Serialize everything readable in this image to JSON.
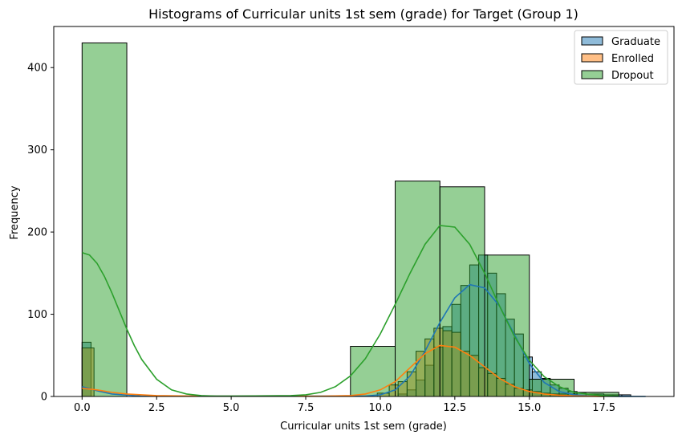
{
  "chart_data": {
    "type": "bar",
    "title": "Histograms of Curricular units 1st sem (grade) for Target (Group 1)",
    "xlabel": "Curricular units 1st sem (grade)",
    "ylabel": "Frequency",
    "xlim": [
      -0.95,
      19.85
    ],
    "ylim": [
      0,
      450
    ],
    "xticks": [
      0.0,
      2.5,
      5.0,
      7.5,
      10.0,
      12.5,
      15.0,
      17.5
    ],
    "xtick_labels": [
      "0.0",
      "2.5",
      "5.0",
      "7.5",
      "10.0",
      "12.5",
      "15.0",
      "17.5"
    ],
    "yticks": [
      0,
      100,
      200,
      300,
      400
    ],
    "ytick_labels": [
      "0",
      "100",
      "200",
      "300",
      "400"
    ],
    "legend_position": "top-right",
    "series": [
      {
        "name": "Graduate",
        "color": "#1f77b4",
        "bar_alpha": 0.5,
        "bins": [
          [
            0.0,
            0.3,
            66
          ],
          [
            10.6,
            10.9,
            3
          ],
          [
            10.9,
            11.2,
            8
          ],
          [
            11.2,
            11.5,
            20
          ],
          [
            11.5,
            11.8,
            38
          ],
          [
            11.8,
            12.1,
            60
          ],
          [
            12.1,
            12.4,
            85
          ],
          [
            12.4,
            12.7,
            112
          ],
          [
            12.7,
            13.0,
            135
          ],
          [
            13.0,
            13.3,
            160
          ],
          [
            13.3,
            13.6,
            172
          ],
          [
            13.6,
            13.9,
            150
          ],
          [
            13.9,
            14.2,
            125
          ],
          [
            14.2,
            14.5,
            94
          ],
          [
            14.5,
            14.8,
            76
          ],
          [
            14.8,
            15.1,
            48
          ],
          [
            15.1,
            15.4,
            30
          ],
          [
            15.4,
            15.7,
            22
          ],
          [
            15.7,
            16.0,
            14
          ],
          [
            16.0,
            16.3,
            10
          ],
          [
            16.3,
            16.6,
            6
          ],
          [
            16.6,
            16.9,
            4
          ],
          [
            16.9,
            17.2,
            3
          ],
          [
            17.2,
            17.5,
            3
          ],
          [
            17.5,
            17.8,
            2
          ],
          [
            17.8,
            18.1,
            2
          ],
          [
            18.1,
            18.4,
            2
          ]
        ],
        "kde": [
          [
            0.0,
            12
          ],
          [
            0.5,
            7
          ],
          [
            1.0,
            3
          ],
          [
            2.0,
            0.5
          ],
          [
            9.5,
            0.5
          ],
          [
            10.0,
            2
          ],
          [
            10.5,
            8
          ],
          [
            11.0,
            25
          ],
          [
            11.5,
            55
          ],
          [
            12.0,
            90
          ],
          [
            12.5,
            120
          ],
          [
            13.0,
            136
          ],
          [
            13.5,
            132
          ],
          [
            14.0,
            110
          ],
          [
            14.5,
            75
          ],
          [
            15.0,
            40
          ],
          [
            15.5,
            17
          ],
          [
            16.0,
            6
          ],
          [
            16.5,
            2
          ],
          [
            17.0,
            0.6
          ],
          [
            18.0,
            0.1
          ],
          [
            18.9,
            0
          ]
        ]
      },
      {
        "name": "Enrolled",
        "color": "#ff7f0e",
        "bar_alpha": 0.5,
        "bins": [
          [
            0.0,
            0.4,
            59
          ],
          [
            9.9,
            10.3,
            4
          ],
          [
            10.3,
            10.6,
            14
          ],
          [
            10.6,
            10.9,
            18
          ],
          [
            10.9,
            11.2,
            30
          ],
          [
            11.2,
            11.5,
            55
          ],
          [
            11.5,
            11.8,
            70
          ],
          [
            11.8,
            12.1,
            83
          ],
          [
            12.1,
            12.4,
            80
          ],
          [
            12.4,
            12.7,
            78
          ],
          [
            12.7,
            13.0,
            55
          ],
          [
            13.0,
            13.3,
            50
          ],
          [
            13.3,
            13.6,
            35
          ],
          [
            13.6,
            13.9,
            28
          ],
          [
            13.9,
            14.2,
            22
          ],
          [
            14.2,
            14.5,
            15
          ],
          [
            14.5,
            14.8,
            10
          ],
          [
            14.8,
            15.1,
            8
          ],
          [
            15.1,
            15.4,
            6
          ],
          [
            15.4,
            15.7,
            4
          ],
          [
            15.7,
            16.0,
            3
          ],
          [
            16.0,
            16.3,
            3
          ],
          [
            16.3,
            16.6,
            3
          ]
        ],
        "kde": [
          [
            0.0,
            10
          ],
          [
            0.5,
            8
          ],
          [
            1.0,
            5
          ],
          [
            1.5,
            3
          ],
          [
            2.5,
            1
          ],
          [
            4.0,
            0.3
          ],
          [
            8.0,
            0.3
          ],
          [
            9.0,
            1
          ],
          [
            9.5,
            3
          ],
          [
            10.0,
            8
          ],
          [
            10.5,
            18
          ],
          [
            11.0,
            35
          ],
          [
            11.5,
            52
          ],
          [
            12.0,
            62
          ],
          [
            12.5,
            60
          ],
          [
            13.0,
            50
          ],
          [
            13.5,
            36
          ],
          [
            14.0,
            22
          ],
          [
            14.5,
            12
          ],
          [
            15.0,
            6
          ],
          [
            15.5,
            3
          ],
          [
            16.0,
            1.5
          ],
          [
            16.5,
            0.7
          ],
          [
            17.0,
            0.3
          ],
          [
            17.5,
            0.1
          ]
        ]
      },
      {
        "name": "Dropout",
        "color": "#2ca02c",
        "bar_alpha": 0.5,
        "bins": [
          [
            0.0,
            1.5,
            430
          ],
          [
            9.0,
            10.5,
            61
          ],
          [
            10.5,
            12.0,
            262
          ],
          [
            12.0,
            13.5,
            255
          ],
          [
            13.5,
            15.0,
            172
          ],
          [
            15.0,
            16.5,
            21
          ],
          [
            16.5,
            18.0,
            5
          ]
        ],
        "kde": [
          [
            0.0,
            175
          ],
          [
            0.25,
            172
          ],
          [
            0.5,
            162
          ],
          [
            0.75,
            146
          ],
          [
            1.0,
            126
          ],
          [
            1.25,
            104
          ],
          [
            1.5,
            82
          ],
          [
            1.75,
            62
          ],
          [
            2.0,
            45
          ],
          [
            2.5,
            21
          ],
          [
            3.0,
            8
          ],
          [
            3.5,
            3
          ],
          [
            4.0,
            1
          ],
          [
            4.5,
            0.5
          ],
          [
            5.0,
            0.5
          ],
          [
            7.0,
            1
          ],
          [
            7.5,
            2
          ],
          [
            8.0,
            5
          ],
          [
            8.5,
            12
          ],
          [
            9.0,
            25
          ],
          [
            9.5,
            46
          ],
          [
            10.0,
            76
          ],
          [
            10.5,
            112
          ],
          [
            11.0,
            150
          ],
          [
            11.5,
            185
          ],
          [
            12.0,
            208
          ],
          [
            12.5,
            206
          ],
          [
            13.0,
            185
          ],
          [
            13.5,
            150
          ],
          [
            14.0,
            110
          ],
          [
            14.5,
            73
          ],
          [
            15.0,
            44
          ],
          [
            15.5,
            24
          ],
          [
            16.0,
            12
          ],
          [
            16.5,
            5
          ],
          [
            17.0,
            2.5
          ],
          [
            17.5,
            1
          ],
          [
            18.0,
            0.5
          ]
        ]
      }
    ]
  }
}
